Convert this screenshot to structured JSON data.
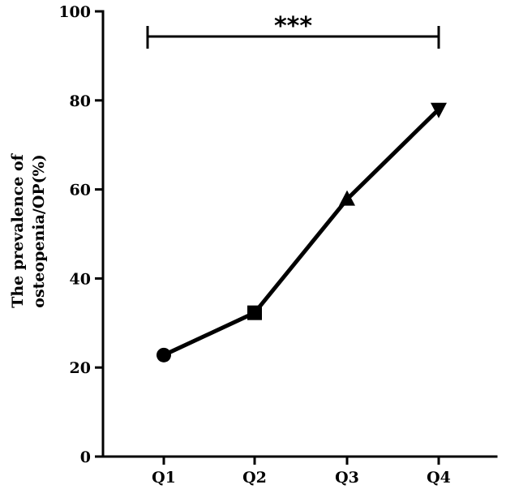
{
  "chart_data": {
    "type": "line",
    "title": "",
    "xlabel": "",
    "ylabel_lines": [
      "The prevalence of",
      "osteopenia/OP(%)"
    ],
    "categories": [
      "Q1",
      "Q2",
      "Q3",
      "Q4"
    ],
    "series": [
      {
        "values": [
          22.8,
          32.3,
          57.8,
          78.0
        ],
        "markers": [
          "circle",
          "square",
          "triangle-up",
          "triangle-down"
        ]
      }
    ],
    "ylim": [
      0,
      100
    ],
    "yticks": [
      0,
      20,
      40,
      60,
      80,
      100
    ],
    "grid": false,
    "annotation": {
      "label": "***",
      "from_category": "Q1",
      "to_category": "Q4"
    }
  }
}
